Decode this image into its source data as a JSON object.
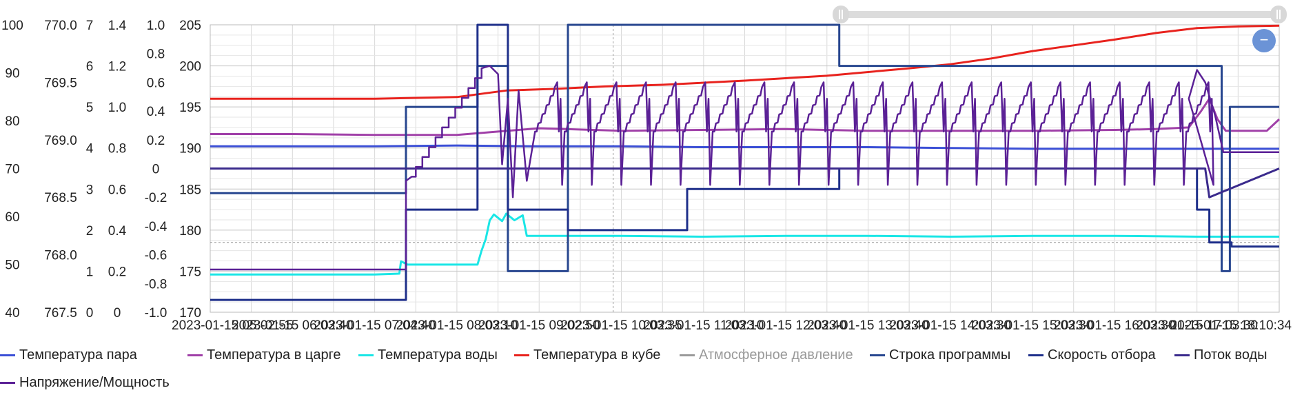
{
  "zoom": {
    "label": "−"
  },
  "chart_data": {
    "type": "line",
    "x_tick_labels": [
      "2023-01-15 05:02:55",
      "2023-01-15 06:03:40",
      "2023-01-15 07:04:40",
      "2023-01-15 08:03:10",
      "2023-01-15 09:02:50",
      "2023-01-15 10:03:35",
      "2023-01-15 11:03:10",
      "2023-01-15 12:03:40",
      "2023-01-15 13:03:40",
      "2023-01-15 14:03:30",
      "2023-01-15 15:03:30",
      "2023-01-15 16:03:30",
      "2023-01-15 17:03:30",
      "2023-01-15 18:10:34"
    ],
    "x_tick_labels_visible": [
      "2023-01-15 05:02:55",
      "2023-01-15 06:03:40",
      "2023-01-15 07:04:40",
      "2023-01-15 08:03:10",
      "2023-01-15 09:02:50",
      "2023-01-15 10:03:35",
      "2023-01-15 11:03:10",
      "2023-01-15 12:03:40",
      "2023-01-15 13:03:40",
      "2023-01-15 14:03:30",
      "2023-01-15 15:03:30",
      "2023-01-15 16:03:30",
      "2023-01-15 17:03:30",
      "2023-01-15 18:10:34"
    ],
    "x_range": [
      0,
      1300
    ],
    "y_axes": [
      {
        "ticks": [
          "100",
          "90",
          "80",
          "70",
          "60",
          "50",
          "40"
        ],
        "min": 40,
        "max": 100
      },
      {
        "ticks": [
          "770.0",
          "769.5",
          "769.0",
          "768.5",
          "768.0",
          "767.5"
        ],
        "min": 767.5,
        "max": 770.0
      },
      {
        "ticks": [
          "7",
          "6",
          "5",
          "4",
          "3",
          "2",
          "1",
          "0"
        ],
        "min": 0,
        "max": 7
      },
      {
        "ticks": [
          "1.4",
          "1.2",
          "1.0",
          "0.8",
          "0.6",
          "0.4",
          "0.2",
          "0"
        ],
        "min": 0,
        "max": 1.4
      },
      {
        "ticks": [
          "1.0",
          "0.8",
          "0.6",
          "0.4",
          "0.2",
          "0",
          "-0.2",
          "-0.4",
          "-0.6",
          "-0.8",
          "-1.0"
        ],
        "min": -1.0,
        "max": 1.0
      },
      {
        "ticks": [
          "205",
          "200",
          "195",
          "190",
          "185",
          "180",
          "175",
          "170"
        ],
        "min": 170,
        "max": 205
      }
    ],
    "crosshair": {
      "x": 490,
      "y": 178.5
    },
    "grid": true,
    "legend_position": "bottom",
    "series": [
      {
        "name": "Температура пара",
        "color": "#3b4fd6",
        "axis": 5,
        "kind": "line",
        "points": [
          [
            0,
            190.2
          ],
          [
            100,
            190.2
          ],
          [
            200,
            190.2
          ],
          [
            300,
            190.3
          ],
          [
            400,
            190.2
          ],
          [
            500,
            190.2
          ],
          [
            600,
            190.1
          ],
          [
            700,
            190.1
          ],
          [
            800,
            190.1
          ],
          [
            900,
            190.0
          ],
          [
            1000,
            189.9
          ],
          [
            1100,
            189.9
          ],
          [
            1200,
            189.9
          ],
          [
            1300,
            189.9
          ]
        ]
      },
      {
        "name": "Температура в царге",
        "color": "#a040a8",
        "axis": 5,
        "kind": "line",
        "points": [
          [
            0,
            191.7
          ],
          [
            100,
            191.7
          ],
          [
            200,
            191.6
          ],
          [
            300,
            191.6
          ],
          [
            350,
            192.0
          ],
          [
            400,
            192.4
          ],
          [
            500,
            192.1
          ],
          [
            600,
            192.2
          ],
          [
            700,
            192.3
          ],
          [
            800,
            192.1
          ],
          [
            900,
            192.1
          ],
          [
            1000,
            192.1
          ],
          [
            1100,
            192.2
          ],
          [
            1150,
            192.3
          ],
          [
            1190,
            192.5
          ],
          [
            1205,
            194.5
          ],
          [
            1215,
            196.0
          ],
          [
            1225,
            193.5
          ],
          [
            1235,
            192.1
          ],
          [
            1285,
            192.1
          ],
          [
            1300,
            193.5
          ]
        ]
      },
      {
        "name": "Температура воды",
        "color": "#1ae6e6",
        "axis": 5,
        "kind": "line",
        "points": [
          [
            0,
            174.6
          ],
          [
            120,
            174.6
          ],
          [
            200,
            174.6
          ],
          [
            230,
            174.7
          ],
          [
            232,
            176.2
          ],
          [
            240,
            175.8
          ],
          [
            300,
            175.8
          ],
          [
            325,
            175.8
          ],
          [
            330,
            177.5
          ],
          [
            335,
            178.9
          ],
          [
            340,
            181.2
          ],
          [
            345,
            181.9
          ],
          [
            355,
            181.1
          ],
          [
            360,
            182.0
          ],
          [
            370,
            181.2
          ],
          [
            380,
            181.8
          ],
          [
            385,
            179.3
          ],
          [
            400,
            179.3
          ],
          [
            500,
            179.3
          ],
          [
            600,
            179.2
          ],
          [
            700,
            179.3
          ],
          [
            800,
            179.3
          ],
          [
            900,
            179.2
          ],
          [
            1000,
            179.3
          ],
          [
            1100,
            179.3
          ],
          [
            1200,
            179.2
          ],
          [
            1300,
            179.2
          ]
        ]
      },
      {
        "name": "Температура в кубе",
        "color": "#e8231e",
        "axis": 5,
        "kind": "line",
        "points": [
          [
            0,
            196.0
          ],
          [
            100,
            196.0
          ],
          [
            200,
            196.0
          ],
          [
            300,
            196.2
          ],
          [
            360,
            197.0
          ],
          [
            420,
            197.2
          ],
          [
            480,
            197.5
          ],
          [
            550,
            197.7
          ],
          [
            650,
            198.2
          ],
          [
            750,
            198.8
          ],
          [
            850,
            199.7
          ],
          [
            900,
            200.2
          ],
          [
            950,
            200.9
          ],
          [
            1000,
            201.8
          ],
          [
            1050,
            202.5
          ],
          [
            1100,
            203.2
          ],
          [
            1150,
            204.0
          ],
          [
            1200,
            204.6
          ],
          [
            1250,
            204.8
          ],
          [
            1300,
            204.9
          ]
        ]
      },
      {
        "name": "Атмосферное давление",
        "color": "#9a9a9a",
        "axis": 1,
        "kind": "hidden",
        "points": []
      },
      {
        "name": "Строка программы",
        "color": "#27468f",
        "axis": 2,
        "kind": "step",
        "points": [
          [
            0,
            2.9
          ],
          [
            238,
            2.9
          ],
          [
            238,
            5.0
          ],
          [
            325,
            5.0
          ],
          [
            325,
            6.0
          ],
          [
            362,
            6.0
          ],
          [
            362,
            1.0
          ],
          [
            400,
            1.0
          ],
          [
            400,
            1.0
          ],
          [
            435,
            1.0
          ],
          [
            435,
            7.0
          ],
          [
            765,
            7.0
          ],
          [
            765,
            6.0
          ],
          [
            1230,
            6.0
          ],
          [
            1230,
            1.0
          ],
          [
            1240,
            1.0
          ],
          [
            1240,
            5.0
          ],
          [
            1300,
            5.0
          ]
        ]
      },
      {
        "name": "Скорость отбора",
        "color": "#1e2f8a",
        "axis": 2,
        "kind": "step",
        "points": [
          [
            0,
            0.3
          ],
          [
            238,
            0.3
          ],
          [
            238,
            2.5
          ],
          [
            325,
            2.5
          ],
          [
            325,
            7.0
          ],
          [
            362,
            7.0
          ],
          [
            362,
            2.5
          ],
          [
            435,
            2.5
          ],
          [
            435,
            2.0
          ],
          [
            580,
            2.0
          ],
          [
            580,
            2.5
          ],
          [
            580,
            2.5
          ],
          [
            580,
            2.0
          ],
          [
            580,
            2.0
          ],
          [
            580,
            2.5
          ],
          [
            580,
            2.5
          ],
          [
            580,
            3.0
          ],
          [
            765,
            3.0
          ],
          [
            765,
            3.5
          ],
          [
            1200,
            3.5
          ],
          [
            1200,
            2.5
          ],
          [
            1215,
            2.5
          ],
          [
            1215,
            1.7
          ],
          [
            1242,
            1.7
          ],
          [
            1242,
            1.6
          ],
          [
            1300,
            1.6
          ]
        ]
      },
      {
        "name": "Поток воды",
        "color": "#3a2a8c",
        "axis": 2,
        "kind": "step",
        "points": [
          [
            0,
            3.5
          ],
          [
            1200,
            3.5
          ],
          [
            1210,
            3.5
          ],
          [
            1215,
            2.8
          ],
          [
            1300,
            3.5
          ]
        ]
      },
      {
        "name": "Напряжение/Мощность",
        "color": "#5b2196",
        "axis": 5,
        "kind": "step",
        "points": []
      }
    ]
  }
}
